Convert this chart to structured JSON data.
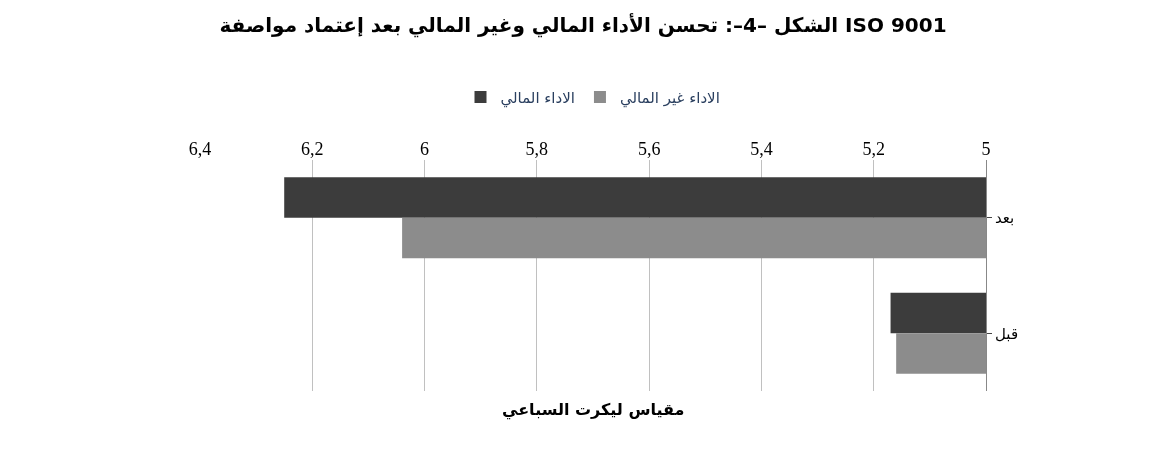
{
  "chart_data": {
    "type": "bar",
    "orientation": "horizontal",
    "title": "الشكل –4–: تحسن الأداء المالي وغير المالي بعد إعتماد مواصفة ISO 9001",
    "xlabel": "مقياس ليكرت السباعي",
    "categories": [
      "بعد",
      "قبل"
    ],
    "series": [
      {
        "name": "الاداء المالي",
        "color": "#3c3c3c",
        "values": [
          6.25,
          5.17
        ]
      },
      {
        "name": "الاداء غير المالي",
        "color": "#8c8c8c",
        "values": [
          6.04,
          5.16
        ]
      }
    ],
    "xlim": [
      6.4,
      5
    ],
    "xticks": [
      {
        "value": 6.4,
        "label": "6,4"
      },
      {
        "value": 6.2,
        "label": "6,2"
      },
      6,
      {
        "value": 5.8,
        "label": "5,8"
      },
      {
        "value": 5.6,
        "label": "5,6"
      },
      {
        "value": 5.4,
        "label": "5,4"
      },
      {
        "value": 5.2,
        "label": "5,2"
      },
      5
    ],
    "grid": "x",
    "legend": "top"
  }
}
